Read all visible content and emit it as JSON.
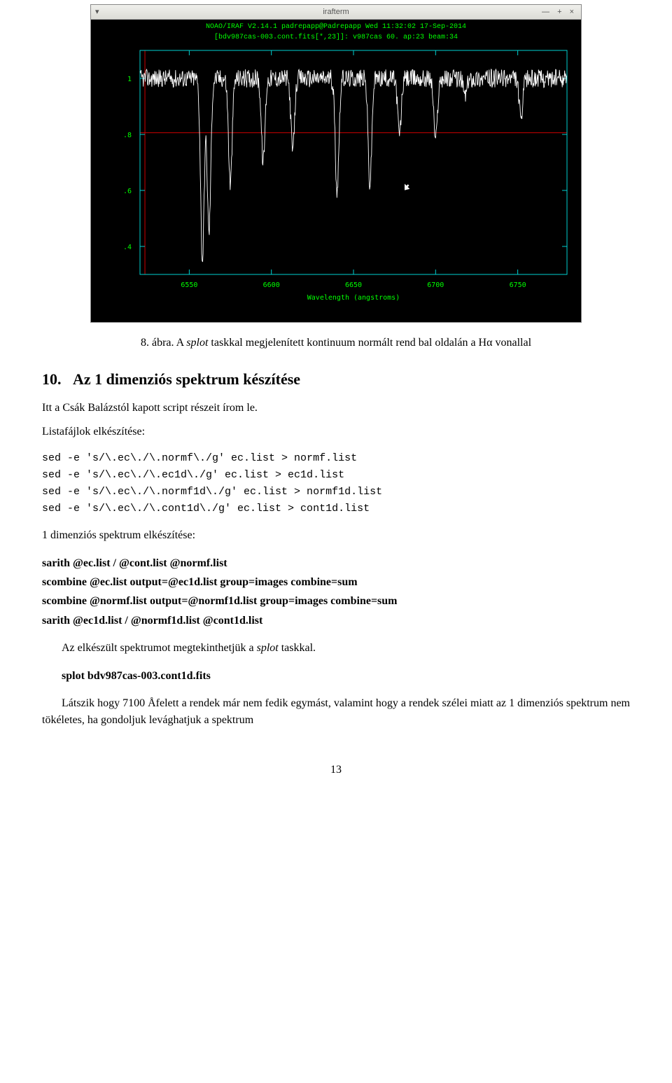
{
  "terminal": {
    "titlebar_text": "irafterm",
    "titlebar_left": "▾",
    "titlebar_right": "— + ×",
    "header_line1": "NOAO/IRAF V2.14.1 padrepapp@Padrepapp Wed 11:32:02 17-Sep-2014",
    "header_line2": "[bdv987cas-003.cont.fits[*,23]]: v987cas 60. ap:23 beam:34"
  },
  "spectrum_plot": {
    "type": "line",
    "box_color": "#00d0d0",
    "background": "#000000",
    "line_color": "#ffffff",
    "tick_color": "#00d0d0",
    "label_color": "#00ff00",
    "cross_color": "#cc0000",
    "x_ticks": [
      6550,
      6600,
      6650,
      6700,
      6750
    ],
    "y_ticks": [
      0.4,
      0.6,
      0.8,
      1.0
    ],
    "y_tick_labels": [
      ".4",
      ".6",
      ".8",
      "1"
    ],
    "x_label": "Wavelength (angstroms)",
    "xlim": [
      6520,
      6780
    ],
    "ylim": [
      0.3,
      1.1
    ],
    "cursor_x": 6681,
    "cursor_y": 0.6,
    "crosshair_y": 0.806,
    "label_fontsize": 10,
    "tick_fontsize": 10,
    "absorption_lines": [
      {
        "x": 6558,
        "depth": 0.35
      },
      {
        "x": 6562,
        "depth": 0.45
      },
      {
        "x": 6575,
        "depth": 0.62
      },
      {
        "x": 6595,
        "depth": 0.7
      },
      {
        "x": 6613,
        "depth": 0.74
      },
      {
        "x": 6640,
        "depth": 0.6
      },
      {
        "x": 6660,
        "depth": 0.62
      },
      {
        "x": 6678,
        "depth": 0.8
      },
      {
        "x": 6700,
        "depth": 0.78
      },
      {
        "x": 6718,
        "depth": 0.94
      },
      {
        "x": 6752,
        "depth": 0.85
      }
    ]
  },
  "caption": {
    "number": "8. ábra.",
    "text_before": "A ",
    "italic": "splot",
    "text_after": " taskkal megjelenített kontinuum normált rend bal oldalán a Hα vonallal"
  },
  "section": {
    "number": "10.",
    "title": "Az 1 dimenziós spektrum készítése"
  },
  "para1": "Itt a Csák Balázstól kapott script részeit írom le.",
  "para_listafajlok": "Listafájlok elkészítése:",
  "code1": "sed -e 's/\\.ec\\./\\.normf\\./g' ec.list > normf.list\nsed -e 's/\\.ec\\./\\.ec1d\\./g' ec.list > ec1d.list\nsed -e 's/\\.ec\\./\\.normf1d\\./g' ec.list > normf1d.list\nsed -e 's/\\.ec\\./\\.cont1d\\./g' ec.list > cont1d.list",
  "para_1dim": "1 dimenziós spektrum elkészítése:",
  "bold_block": "sarith @ec.list / @cont.list @normf.list\nscombine @ec.list output=@ec1d.list group=images combine=sum\nscombine @normf.list output=@normf1d.list group=images combine=sum\nsarith @ec1d.list / @normf1d.list @cont1d.list",
  "para_splot_before": "Az elkészült spektrumot megtekinthetjük a ",
  "para_splot_italic": "splot",
  "para_splot_after": " taskkal.",
  "splot_cmd": "splot bdv987cas-003.cont1d.fits",
  "para_last": "Látszik hogy 7100 Åfelett a rendek már nem fedik egymást, valamint hogy a rendek szélei miatt az 1 dimenziós spektrum nem tökéletes, ha gondoljuk levághatjuk a spektrum",
  "page_number": "13"
}
